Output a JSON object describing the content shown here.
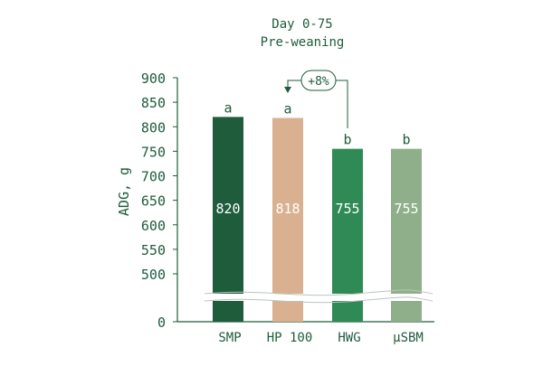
{
  "chart_data": {
    "type": "bar",
    "title": "Day 0-75",
    "subtitle": "Pre-weaning",
    "ylabel": "ADG, g",
    "xlabel": "",
    "categories": [
      "SMP",
      "HP 100",
      "HWG",
      "µSBM"
    ],
    "values": [
      820,
      818,
      755,
      755
    ],
    "value_labels": [
      "820",
      "818",
      "755",
      "755"
    ],
    "significance_letters": [
      "a",
      "a",
      "b",
      "b"
    ],
    "colors": [
      "#1f5c3c",
      "#d9b190",
      "#2f8a55",
      "#8faf8a"
    ],
    "yticks": [
      "900",
      "850",
      "800",
      "750",
      "700",
      "650",
      "600",
      "550",
      "500",
      "0"
    ],
    "ylim": [
      0,
      900
    ],
    "axis_break": "between 0 and 500",
    "annotation": {
      "text": "+8%",
      "from": "HWG",
      "to": "HP 100"
    },
    "grid": false,
    "legend": "none"
  },
  "style": {
    "text_color": "#1f5c3c",
    "axis_color": "#1f5c3c"
  }
}
